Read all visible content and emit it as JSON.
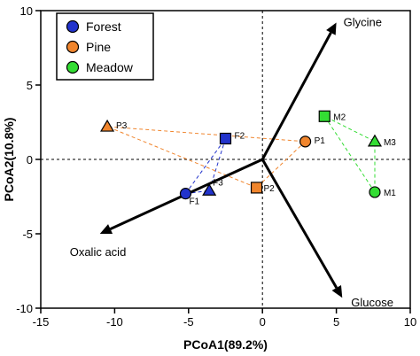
{
  "chart_data": {
    "type": "scatter",
    "title": "",
    "xlabel": "PCoA1(89.2%)",
    "ylabel": "PCoA2(10.8%)",
    "xlim": [
      -15,
      10
    ],
    "ylim": [
      -10,
      10
    ],
    "xticks": [
      "-15",
      "-10",
      "-5",
      "0",
      "5",
      "10"
    ],
    "yticks": [
      "10",
      "5",
      "0",
      "-5",
      "-10"
    ],
    "legend_position": "top-left",
    "series": [
      {
        "name": "Forest",
        "color": "#2233cc",
        "points": [
          {
            "label": "F1",
            "x": -5.2,
            "y": -2.3,
            "marker": "circle"
          },
          {
            "label": "F2",
            "x": -2.5,
            "y": 1.4,
            "marker": "square"
          },
          {
            "label": "F3",
            "x": -3.6,
            "y": -2.1,
            "marker": "triangle"
          }
        ]
      },
      {
        "name": "Pine",
        "color": "#f0852d",
        "points": [
          {
            "label": "P1",
            "x": 2.9,
            "y": 1.2,
            "marker": "circle"
          },
          {
            "label": "P2",
            "x": -0.4,
            "y": -1.9,
            "marker": "square"
          },
          {
            "label": "P3",
            "x": -10.5,
            "y": 2.2,
            "marker": "triangle"
          }
        ]
      },
      {
        "name": "Meadow",
        "color": "#33dd33",
        "points": [
          {
            "label": "M1",
            "x": 7.6,
            "y": -2.2,
            "marker": "circle"
          },
          {
            "label": "M2",
            "x": 4.2,
            "y": 2.9,
            "marker": "square"
          },
          {
            "label": "M3",
            "x": 7.6,
            "y": 1.2,
            "marker": "triangle"
          }
        ]
      }
    ],
    "vectors": [
      {
        "label": "Glycine",
        "x": 5.0,
        "y": 9.2
      },
      {
        "label": "Glucose",
        "x": 5.4,
        "y": -9.3
      },
      {
        "label": "Oxalic acid",
        "x": -11.0,
        "y": -5.0
      }
    ]
  }
}
